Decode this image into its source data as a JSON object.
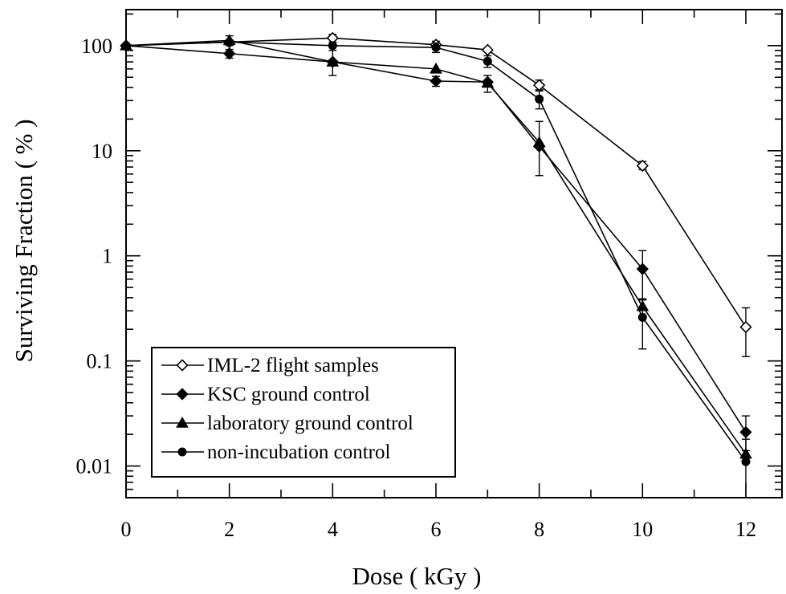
{
  "chart_data": {
    "type": "line",
    "xlabel": "Dose ( kGy )",
    "ylabel": "Surviving Fraction ( % )",
    "x_scale": "linear",
    "y_scale": "log",
    "xlim": [
      0,
      12.7
    ],
    "ylim": [
      0.005,
      220
    ],
    "x_ticks": [
      0,
      2,
      4,
      6,
      8,
      10,
      12
    ],
    "x_tick_labels": [
      "0",
      "2",
      "4",
      "6",
      "8",
      "10",
      "12"
    ],
    "y_ticks": [
      100,
      10,
      1,
      0.1,
      0.01
    ],
    "y_tick_labels": [
      "100",
      "10",
      "1",
      "0.1",
      "0.01"
    ],
    "grid": false,
    "legend_position": "bottom-left",
    "series": [
      {
        "name": "IML-2 flight samples",
        "marker": "open-diamond",
        "points": [
          {
            "x": 0,
            "y": 100
          },
          {
            "x": 2,
            "y": 108
          },
          {
            "x": 4,
            "y": 118,
            "err": [
              108,
              128
            ]
          },
          {
            "x": 6,
            "y": 102,
            "err": [
              94,
              110
            ]
          },
          {
            "x": 7,
            "y": 91
          },
          {
            "x": 8,
            "y": 42,
            "err": [
              38,
              47
            ]
          },
          {
            "x": 10,
            "y": 7.2,
            "err": [
              6.6,
              7.9
            ]
          },
          {
            "x": 12,
            "y": 0.21,
            "err": [
              0.11,
              0.32
            ]
          }
        ]
      },
      {
        "name": "KSC ground control",
        "marker": "filled-diamond",
        "points": [
          {
            "x": 0,
            "y": 100
          },
          {
            "x": 2,
            "y": 84,
            "err": [
              76,
              92
            ]
          },
          {
            "x": 4,
            "y": 70
          },
          {
            "x": 6,
            "y": 46,
            "err": [
              41,
              51
            ]
          },
          {
            "x": 7,
            "y": 45
          },
          {
            "x": 8,
            "y": 11,
            "err": [
              5.8,
              19
            ]
          },
          {
            "x": 10,
            "y": 0.75,
            "err": [
              0.38,
              1.12
            ]
          },
          {
            "x": 12,
            "y": 0.021,
            "err": [
              0.014,
              0.03
            ]
          }
        ]
      },
      {
        "name": "laboratory ground control",
        "marker": "filled-triangle",
        "points": [
          {
            "x": 0,
            "y": 100
          },
          {
            "x": 2,
            "y": 112,
            "err": [
              100,
              124
            ]
          },
          {
            "x": 4,
            "y": 70,
            "err": [
              52,
              90
            ]
          },
          {
            "x": 6,
            "y": 60
          },
          {
            "x": 7,
            "y": 44,
            "err": [
              36,
              52
            ]
          },
          {
            "x": 8,
            "y": 12
          },
          {
            "x": 10,
            "y": 0.33
          },
          {
            "x": 12,
            "y": 0.013
          }
        ]
      },
      {
        "name": "non-incubation control",
        "marker": "filled-circle",
        "points": [
          {
            "x": 0,
            "y": 100
          },
          {
            "x": 2,
            "y": 108
          },
          {
            "x": 4,
            "y": 100
          },
          {
            "x": 6,
            "y": 96,
            "err": [
              86,
              106
            ]
          },
          {
            "x": 7,
            "y": 71,
            "err": [
              62,
              80
            ]
          },
          {
            "x": 8,
            "y": 31,
            "err": [
              25,
              37
            ]
          },
          {
            "x": 10,
            "y": 0.26,
            "err": [
              0.13,
              0.39
            ]
          },
          {
            "x": 12,
            "y": 0.011,
            "err": [
              0.005,
              0.018
            ]
          }
        ]
      }
    ]
  }
}
